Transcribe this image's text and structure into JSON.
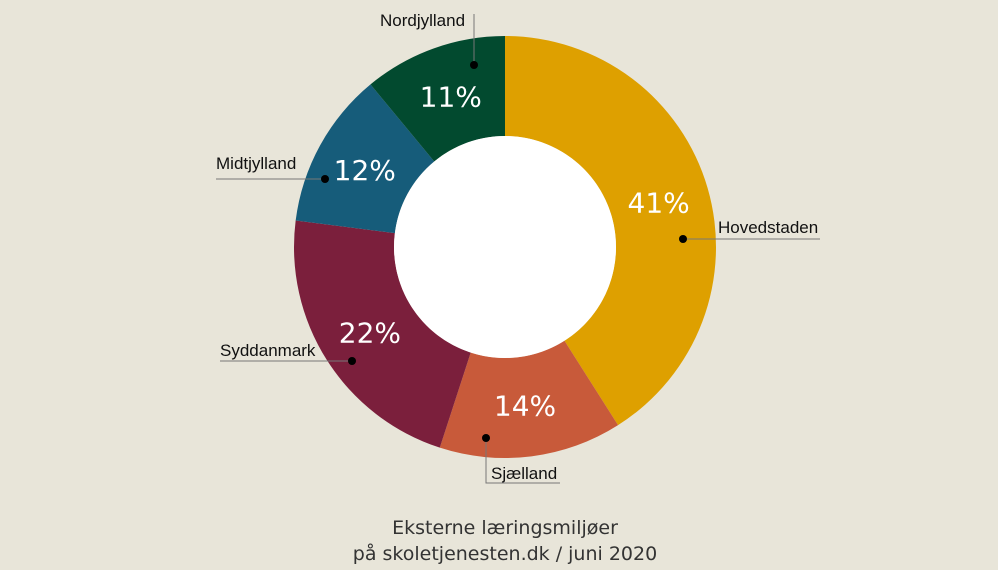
{
  "chart_data": {
    "type": "pie",
    "variant": "donut",
    "title": "",
    "caption_lines": [
      "Eksterne læringsmiljøer",
      "på skoletjenesten.dk / juni 2020"
    ],
    "slices": [
      {
        "label": "Hovedstaden",
        "value": 41,
        "display": "41%",
        "color": "#dea000"
      },
      {
        "label": "Sjælland",
        "value": 14,
        "display": "14%",
        "color": "#c85a3a"
      },
      {
        "label": "Syddanmark",
        "value": 22,
        "display": "22%",
        "color": "#7b1f3c"
      },
      {
        "label": "Midtjylland",
        "value": 12,
        "display": "12%",
        "color": "#165c7a"
      },
      {
        "label": "Nordjylland",
        "value": 11,
        "display": "11%",
        "color": "#024a2f"
      }
    ],
    "start": "12 o'clock",
    "direction": "clockwise",
    "legend": "none",
    "grid": false
  },
  "background_color": "#e8e5d9"
}
